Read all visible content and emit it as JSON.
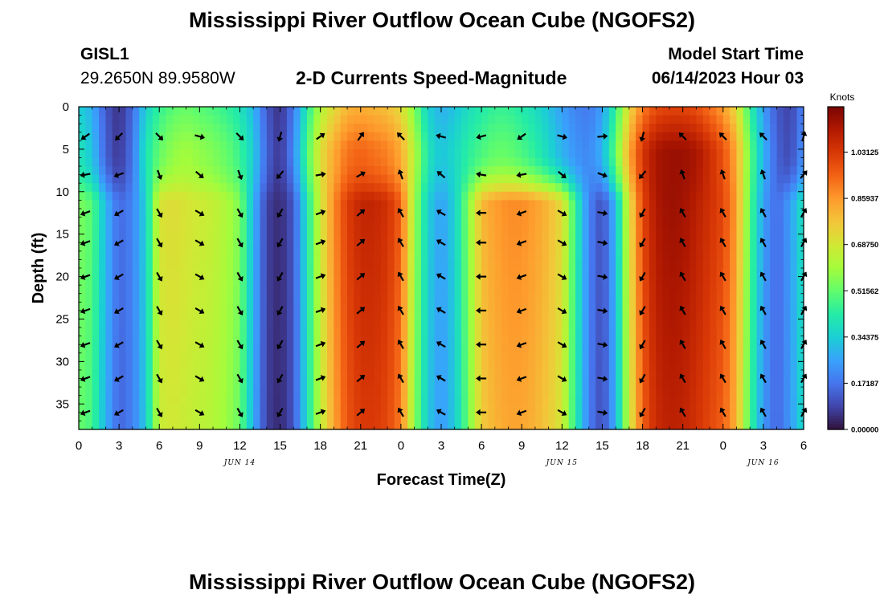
{
  "header": {
    "title": "Mississippi River Outflow Ocean Cube (NGOFS2)",
    "station": "GISL1",
    "coords": "29.2650N  89.9580W",
    "subtitle": "2-D Currents Speed-Magnitude",
    "model_start_label": "Model Start Time",
    "model_start": "06/14/2023 Hour 03",
    "bottom_title": "Mississippi River Outflow Ocean Cube (NGOFS2)"
  },
  "colors": {
    "ramp": [
      "#30123b",
      "#4145ab",
      "#4675ed",
      "#39a2fc",
      "#1bcfd4",
      "#24eca6",
      "#61fc6c",
      "#a4fc3b",
      "#d1e834",
      "#f3c63a",
      "#fe9b2d",
      "#f36315",
      "#d93806",
      "#b11901",
      "#7a0403"
    ]
  },
  "chart_data": {
    "type": "heatmap",
    "title": "2-D Currents Speed-Magnitude",
    "xlabel": "Forecast Time(Z)",
    "ylabel": "Depth (ft)",
    "x_unit": "hours since 06/14/2023 00Z",
    "xlim": [
      0,
      54
    ],
    "ylim": [
      0,
      38
    ],
    "x_ticks": [
      0,
      3,
      6,
      9,
      12,
      15,
      18,
      21,
      24,
      27,
      30,
      33,
      36,
      39,
      42,
      45,
      48,
      51,
      54
    ],
    "x_tick_labels": [
      "0",
      "3",
      "6",
      "9",
      "12",
      "15",
      "18",
      "21",
      "0",
      "3",
      "6",
      "9",
      "12",
      "15",
      "18",
      "21",
      "0",
      "3",
      "6"
    ],
    "y_ticks": [
      0,
      5,
      10,
      15,
      20,
      25,
      30,
      35
    ],
    "y_tick_labels": [
      "0",
      "5",
      "10",
      "15",
      "20",
      "25",
      "30",
      "35"
    ],
    "date_labels": [
      {
        "x": 12,
        "label": "JUN 14"
      },
      {
        "x": 36,
        "label": "JUN 15"
      },
      {
        "x": 51,
        "label": "JUN 16"
      }
    ],
    "colorbar": {
      "label": "Knots",
      "min": 0,
      "max": 1.2,
      "ticks": [
        0.0,
        0.17187,
        0.34375,
        0.51562,
        0.6875,
        0.85937,
        1.03125
      ],
      "tick_labels": [
        "0.00000",
        "0.17187",
        "0.34375",
        "0.51562",
        "0.68750",
        "0.85937",
        "1.03125"
      ]
    },
    "speed_profile": {
      "hours": [
        0,
        1,
        2,
        3,
        4,
        5,
        6,
        7,
        8,
        9,
        10,
        11,
        12,
        13,
        14,
        15,
        16,
        17,
        18,
        19,
        20,
        21,
        22,
        23,
        24,
        25,
        26,
        27,
        28,
        29,
        30,
        31,
        32,
        33,
        34,
        35,
        36,
        37,
        38,
        39,
        40,
        41,
        42,
        43,
        44,
        45,
        46,
        47,
        48,
        49,
        50,
        51,
        52,
        53,
        54
      ],
      "surface_knots": [
        0.35,
        0.28,
        0.12,
        0.05,
        0.15,
        0.35,
        0.45,
        0.5,
        0.52,
        0.5,
        0.48,
        0.45,
        0.4,
        0.3,
        0.12,
        0.05,
        0.18,
        0.42,
        0.62,
        0.72,
        0.8,
        0.82,
        0.8,
        0.78,
        0.72,
        0.55,
        0.35,
        0.28,
        0.32,
        0.38,
        0.42,
        0.45,
        0.45,
        0.42,
        0.38,
        0.32,
        0.25,
        0.2,
        0.18,
        0.25,
        0.45,
        0.72,
        0.9,
        0.98,
        1.0,
        1.0,
        0.98,
        0.92,
        0.85,
        0.72,
        0.45,
        0.25,
        0.12,
        0.08,
        0.2
      ],
      "deep_knots": [
        0.55,
        0.5,
        0.3,
        0.15,
        0.2,
        0.35,
        0.7,
        0.72,
        0.7,
        0.68,
        0.66,
        0.62,
        0.55,
        0.3,
        0.08,
        0.04,
        0.12,
        0.4,
        0.68,
        0.88,
        1.02,
        1.08,
        1.08,
        1.05,
        0.95,
        0.6,
        0.35,
        0.25,
        0.35,
        0.55,
        0.8,
        0.85,
        0.88,
        0.88,
        0.85,
        0.8,
        0.72,
        0.45,
        0.2,
        0.1,
        0.3,
        0.7,
        1.0,
        1.12,
        1.15,
        1.14,
        1.1,
        1.05,
        1.0,
        0.85,
        0.5,
        0.25,
        0.15,
        0.25,
        0.4
      ]
    },
    "vector_hours": [
      0.5,
      3,
      6,
      9,
      12,
      15,
      18,
      21,
      24,
      27,
      30,
      33,
      36,
      39,
      42,
      45,
      48,
      51,
      54
    ],
    "vector_depths_ft": [
      3.5,
      8,
      12.5,
      16,
      20,
      24,
      28,
      32,
      36
    ],
    "vector_directions_deg": [
      200,
      210,
      300,
      330,
      300,
      240,
      20,
      40,
      120,
      150,
      180,
      200,
      330,
      350,
      240,
      120,
      120,
      120,
      60
    ]
  }
}
